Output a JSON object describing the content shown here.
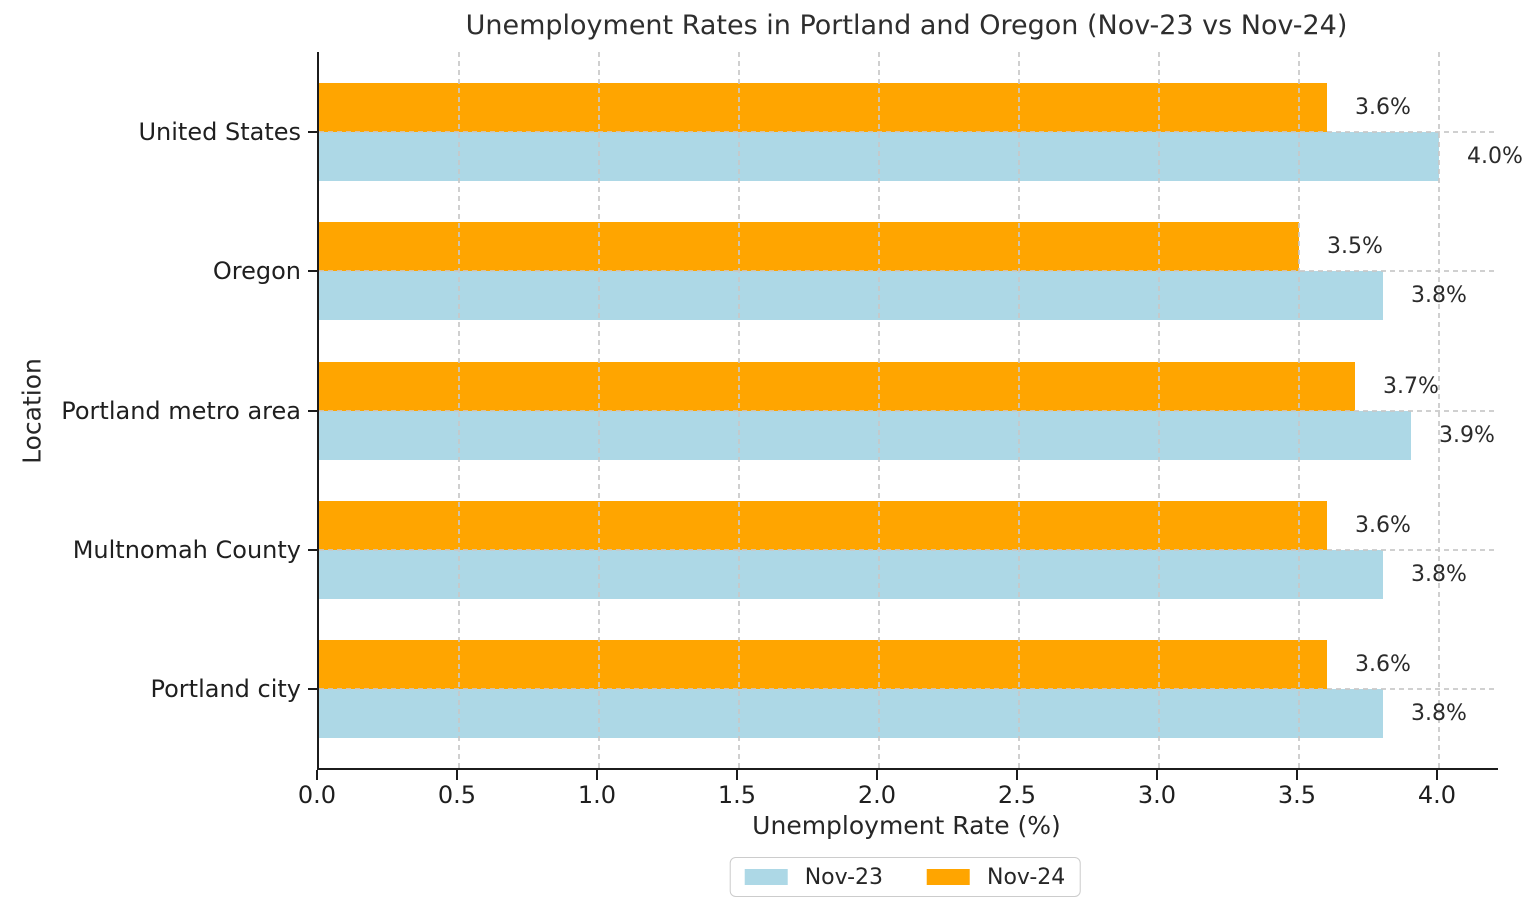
{
  "chart_data": {
    "type": "bar",
    "orientation": "horizontal",
    "title": "Unemployment Rates in Portland and Oregon (Nov-23 vs Nov-24)",
    "xlabel": "Unemployment Rate (%)",
    "ylabel": "Location",
    "categories": [
      "United States",
      "Oregon",
      "Portland metro area",
      "Multnomah County",
      "Portland city"
    ],
    "series": [
      {
        "name": "Nov-23",
        "color": "#ADD8E6",
        "values": [
          4.0,
          3.8,
          3.9,
          3.8,
          3.8
        ],
        "labels": [
          "4.0%",
          "3.8%",
          "3.9%",
          "3.8%",
          "3.8%"
        ]
      },
      {
        "name": "Nov-24",
        "color": "#FFA500",
        "values": [
          3.6,
          3.5,
          3.7,
          3.6,
          3.6
        ],
        "labels": [
          "3.6%",
          "3.5%",
          "3.7%",
          "3.6%",
          "3.6%"
        ]
      }
    ],
    "xlim": [
      0,
      4.2
    ],
    "xticks": [
      0.0,
      0.5,
      1.0,
      1.5,
      2.0,
      2.5,
      3.0,
      3.5,
      4.0
    ],
    "xtick_labels": [
      "0.0",
      "0.5",
      "1.0",
      "1.5",
      "2.0",
      "2.5",
      "3.0",
      "3.5",
      "4.0"
    ],
    "grid": {
      "axis": "both",
      "style": "dashed",
      "color": "#cccccc",
      "drawn_over_bars": true
    },
    "legend": {
      "position": "bottom-center",
      "entries": [
        "Nov-23",
        "Nov-24"
      ]
    },
    "spine_color": "#1c1c1c",
    "background": "#ffffff"
  }
}
